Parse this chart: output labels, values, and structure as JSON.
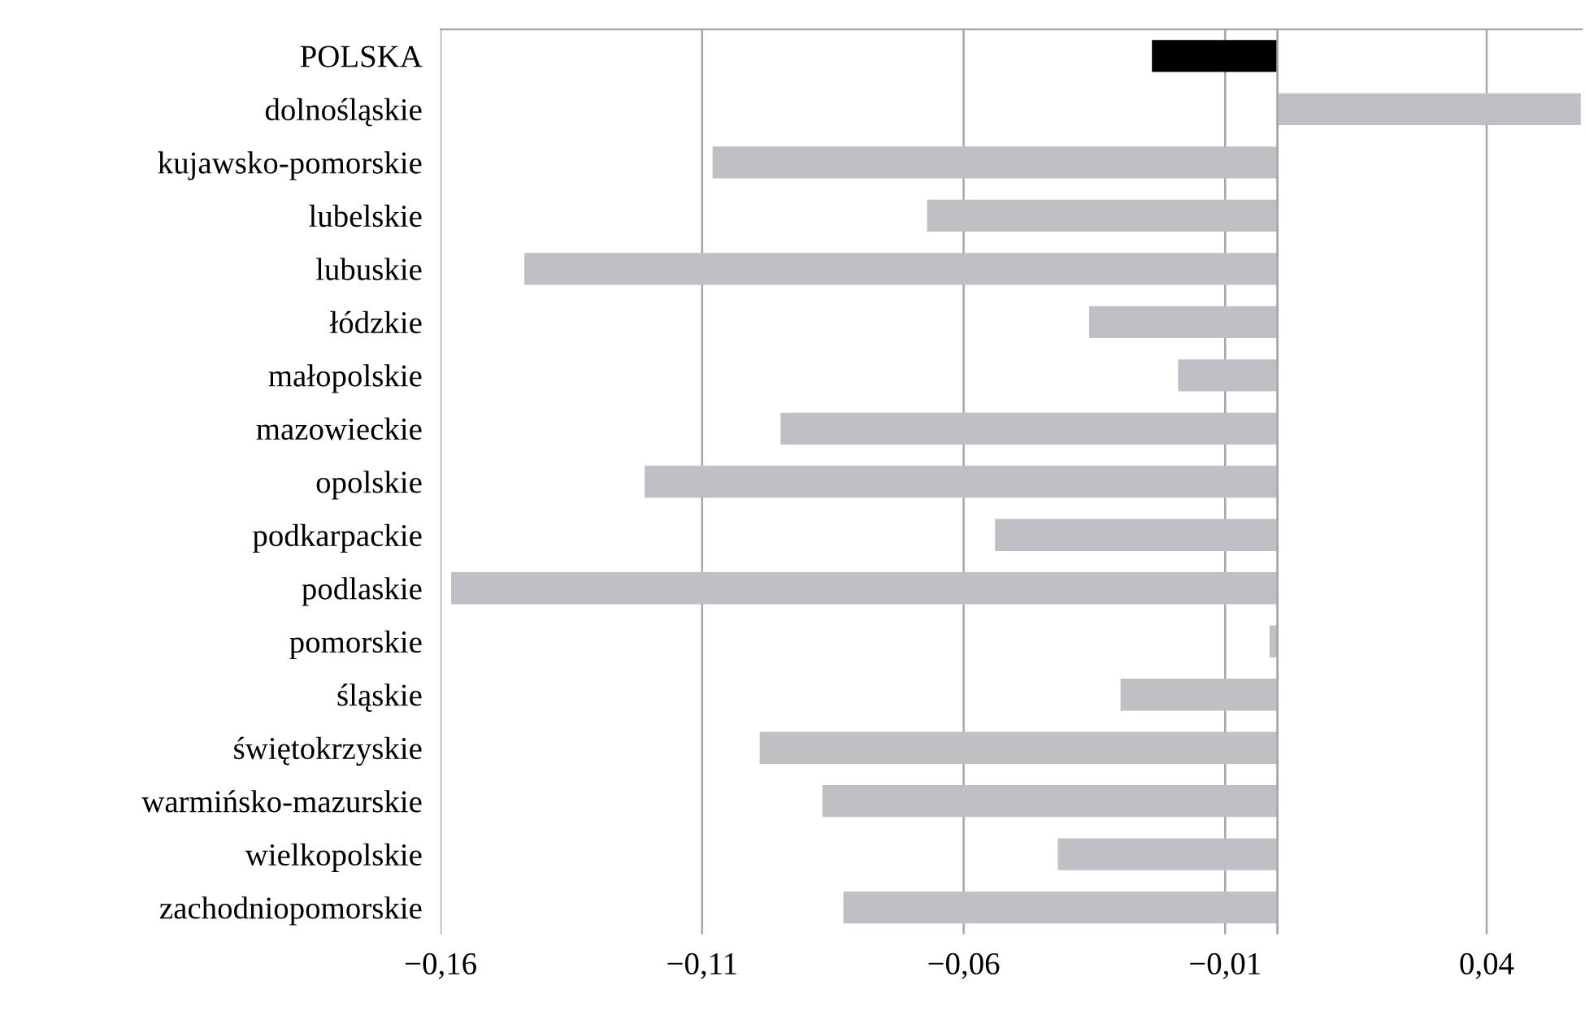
{
  "chart_data": {
    "type": "bar",
    "orientation": "horizontal",
    "categories": [
      "POLSKA",
      "dolnośląskie",
      "kujawsko-pomorskie",
      "lubelskie",
      "lubuskie",
      "łódzkie",
      "małopolskie",
      "mazowieckie",
      "opolskie",
      "podkarpackie",
      "podlaskie",
      "pomorskie",
      "śląskie",
      "świętokrzyskie",
      "warmińsko-mazurskie",
      "wielkopolskie",
      "zachodniopomorskie"
    ],
    "values": [
      -0.024,
      0.058,
      -0.108,
      -0.067,
      -0.144,
      -0.036,
      -0.019,
      -0.095,
      -0.121,
      -0.054,
      -0.158,
      -0.0015,
      -0.03,
      -0.099,
      -0.087,
      -0.042,
      -0.083
    ],
    "colors": [
      "#000000",
      "#bfc0c4",
      "#bfc0c4",
      "#bfc0c4",
      "#bfc0c4",
      "#bfc0c4",
      "#bfc0c4",
      "#bfc0c4",
      "#bfc0c4",
      "#bfc0c4",
      "#bfc0c4",
      "#bfc0c4",
      "#bfc0c4",
      "#bfc0c4",
      "#bfc0c4",
      "#bfc0c4",
      "#bfc0c4"
    ],
    "xlim": [
      -0.16,
      0.0582
    ],
    "xticks": [
      {
        "value": -0.16,
        "label": "−0,16"
      },
      {
        "value": -0.11,
        "label": "−0,11"
      },
      {
        "value": -0.06,
        "label": "−0,06"
      },
      {
        "value": -0.01,
        "label": "−0,01"
      },
      {
        "value": 0.04,
        "label": "0,04"
      }
    ],
    "grid": "x",
    "ref_lines": [
      {
        "axis": "x",
        "value": 0,
        "color": "#a6a6a6"
      }
    ]
  }
}
